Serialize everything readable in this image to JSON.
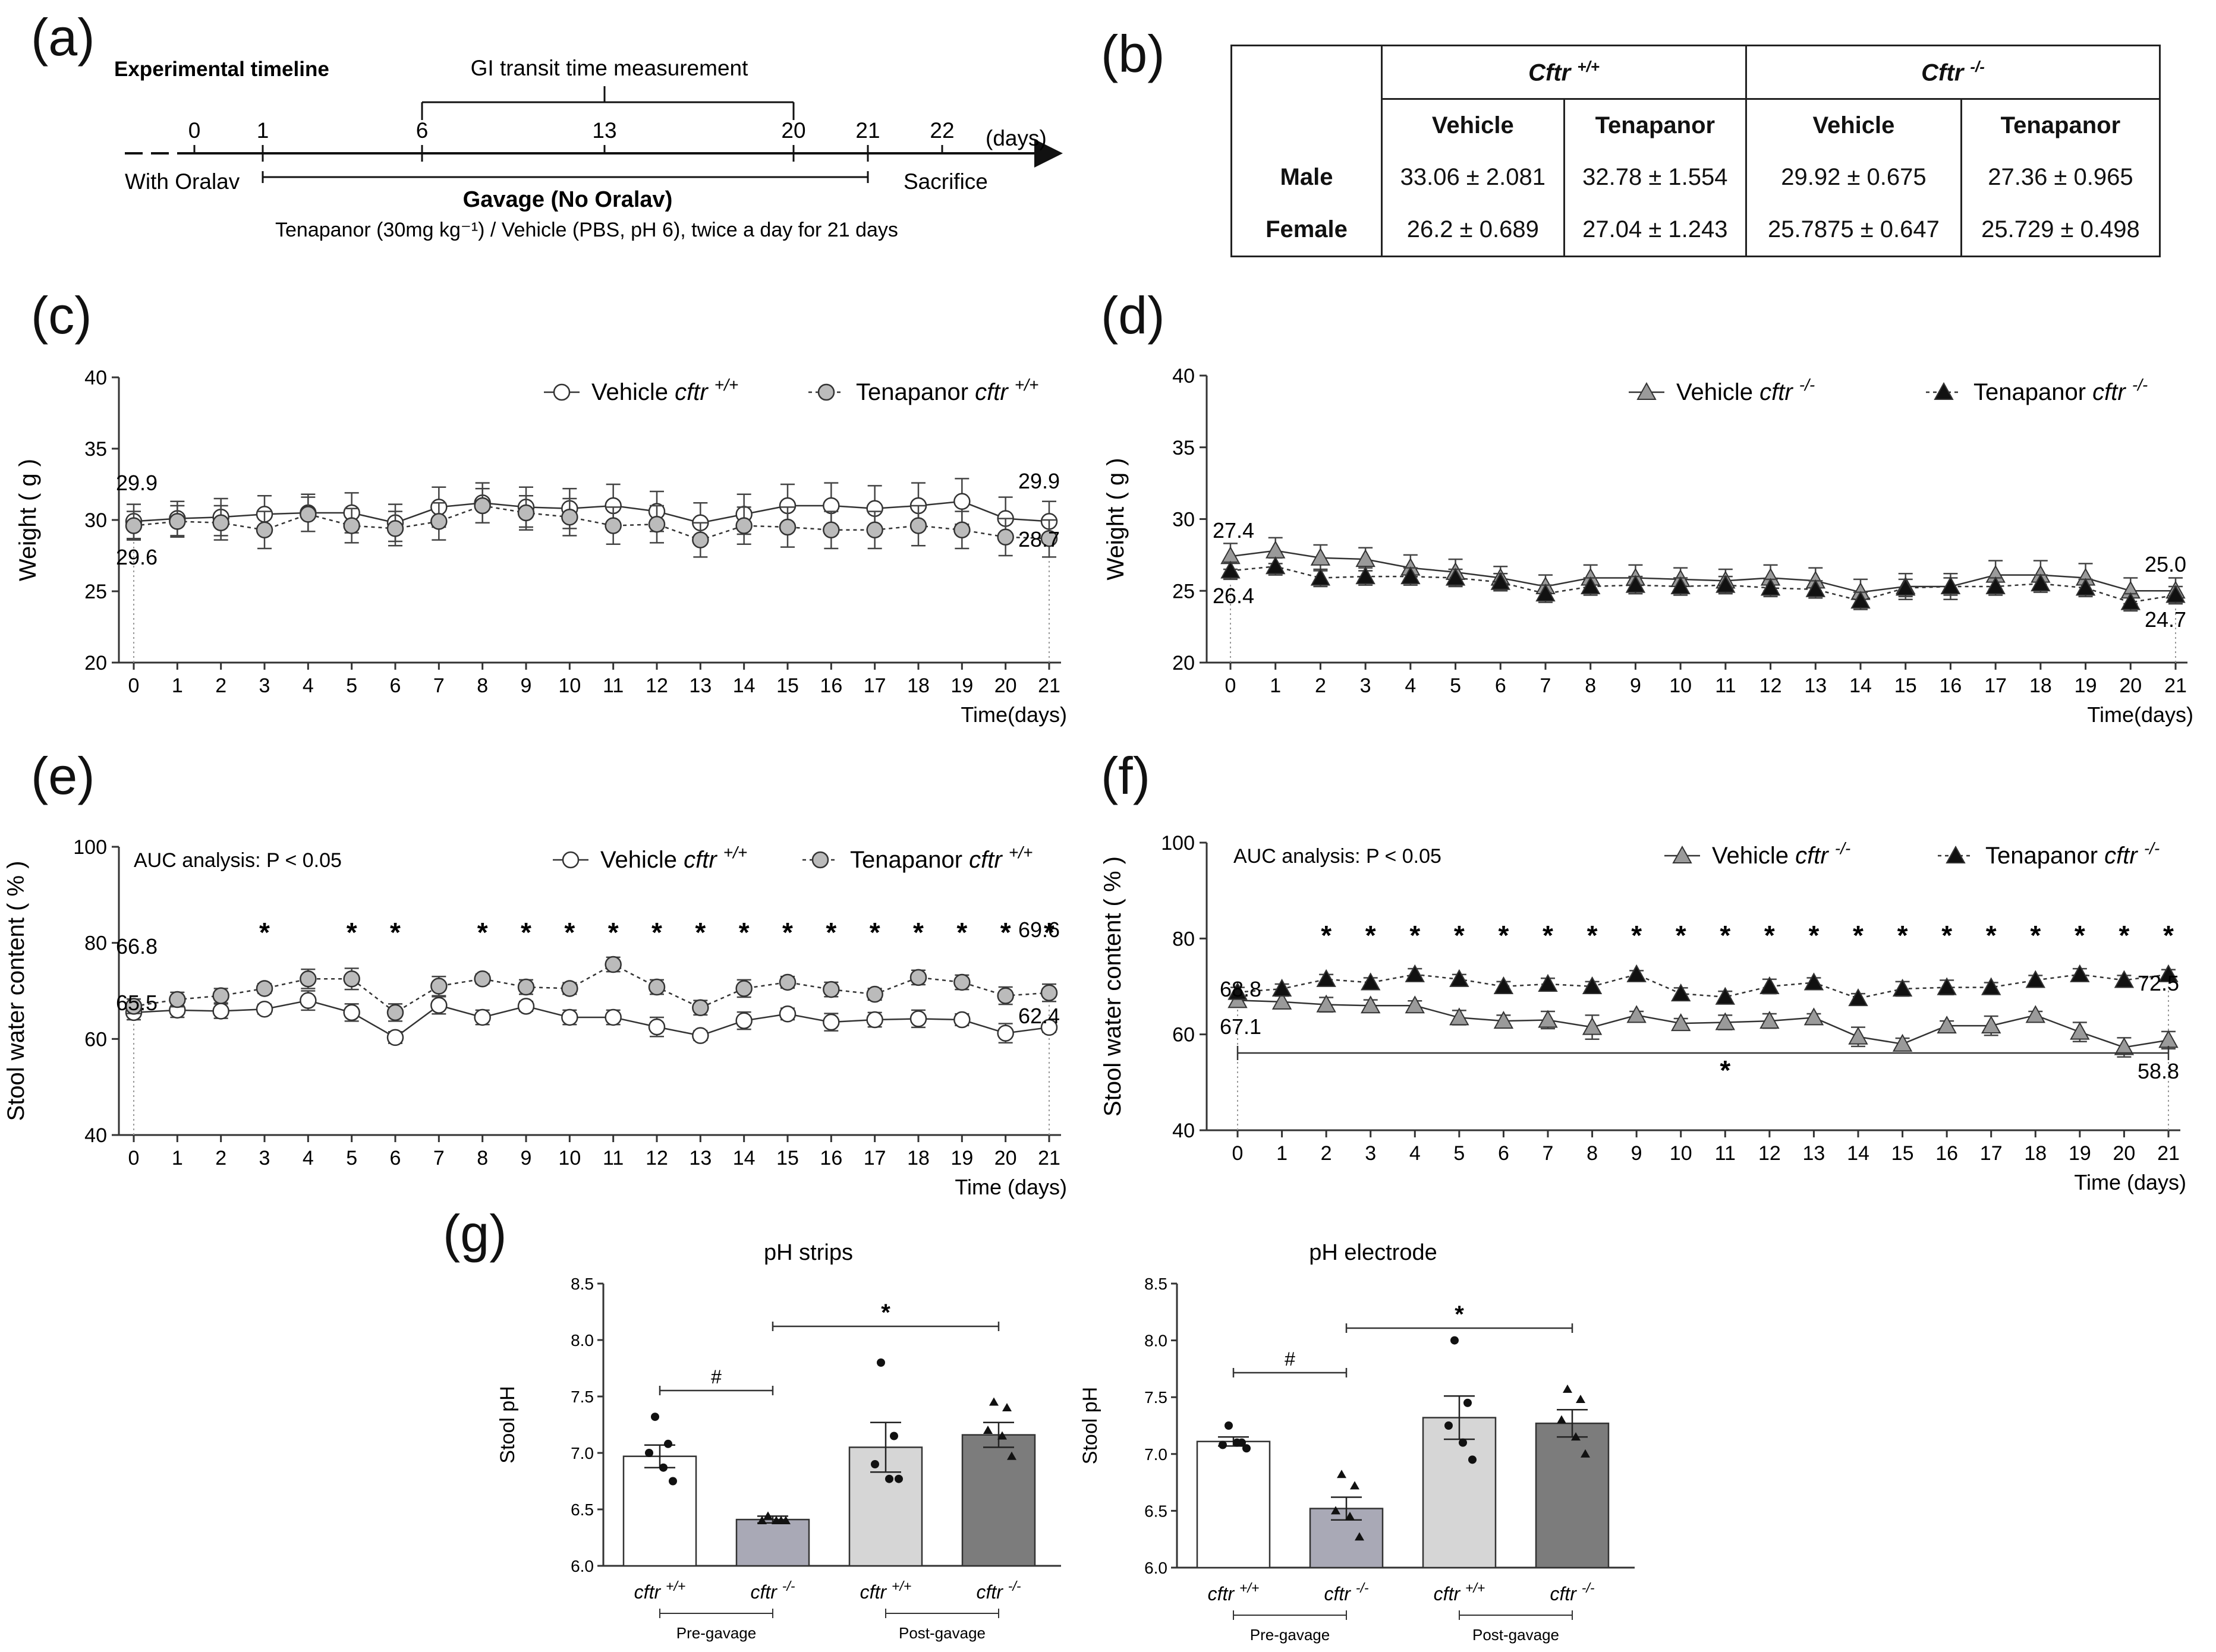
{
  "labels": {
    "a": "(a)",
    "b": "(b)",
    "c": "(c)",
    "d": "(d)",
    "e": "(e)",
    "f": "(f)",
    "g": "(g)"
  },
  "timeline": {
    "title": "Experimental timeline",
    "gi_label": "GI transit time measurement",
    "ticks": [
      "0",
      "1",
      "6",
      "13",
      "20",
      "21",
      "22"
    ],
    "unit": "(days)",
    "with_oralav": "With Oralav",
    "gavage": "Gavage  (No Oralav)",
    "sacrifice": "Sacrifice",
    "dosing": "Tenapanor (30mg kg⁻¹) / Vehicle (PBS, pH 6), twice a day for 21 days"
  },
  "table": {
    "genotype_wt": "Cftr",
    "genotype_wt_sup": "+/+",
    "genotype_ko": "Cftr",
    "genotype_ko_sup": "-/-",
    "treatments": [
      "Vehicle",
      "Tenapanor",
      "Vehicle",
      "Tenapanor"
    ],
    "rows": [
      {
        "sex": "Male",
        "values": [
          "33.06 ± 2.081",
          "32.78 ± 1.554",
          "29.92 ± 0.675",
          "27.36 ± 0.965"
        ]
      },
      {
        "sex": "Female",
        "values": [
          "26.2 ± 0.689",
          "27.04 ± 1.243",
          "25.7875 ± 0.647",
          "25.729 ± 0.498"
        ]
      }
    ]
  },
  "chart_data": [
    {
      "id": "c",
      "type": "line",
      "ylabel": "Weight ( g )",
      "xlabel": "Time(days)",
      "ylim": [
        20,
        40
      ],
      "yticks": [
        20,
        25,
        30,
        35,
        40
      ],
      "x": [
        0,
        1,
        2,
        3,
        4,
        5,
        6,
        7,
        8,
        9,
        10,
        11,
        12,
        13,
        14,
        15,
        16,
        17,
        18,
        19,
        20,
        21
      ],
      "series": [
        {
          "name": "Vehicle",
          "genotype": "cftr",
          "sup": "+/+",
          "style": "solid",
          "marker": "circle-open",
          "values": [
            29.9,
            30.1,
            30.2,
            30.4,
            30.5,
            30.5,
            29.8,
            30.9,
            31.2,
            30.9,
            30.8,
            31.0,
            30.6,
            29.8,
            30.4,
            31.0,
            31.0,
            30.8,
            31.0,
            31.3,
            30.1,
            29.9
          ],
          "err": [
            1.2,
            1.2,
            1.3,
            1.3,
            1.3,
            1.4,
            1.3,
            1.4,
            1.4,
            1.4,
            1.4,
            1.5,
            1.4,
            1.4,
            1.4,
            1.5,
            1.6,
            1.6,
            1.6,
            1.6,
            1.5,
            1.4
          ]
        },
        {
          "name": "Tenapanor",
          "genotype": "cftr",
          "sup": "+/+",
          "style": "dashed",
          "marker": "circle-gray",
          "values": [
            29.6,
            29.9,
            29.8,
            29.3,
            30.4,
            29.6,
            29.4,
            29.9,
            31.0,
            30.5,
            30.2,
            29.6,
            29.7,
            28.6,
            29.6,
            29.5,
            29.3,
            29.3,
            29.6,
            29.3,
            28.8,
            28.7
          ],
          "err": [
            1.0,
            1.1,
            1.2,
            1.3,
            1.2,
            1.2,
            1.2,
            1.3,
            1.2,
            1.2,
            1.3,
            1.3,
            1.3,
            1.2,
            1.3,
            1.4,
            1.3,
            1.3,
            1.4,
            1.3,
            1.3,
            1.3
          ]
        }
      ],
      "annotations": [
        "29.9",
        "29.6",
        "29.9",
        "28.7"
      ]
    },
    {
      "id": "d",
      "type": "line",
      "ylabel": "Weight ( g )",
      "xlabel": "Time(days)",
      "ylim": [
        20,
        40
      ],
      "yticks": [
        20,
        25,
        30,
        35,
        40
      ],
      "x": [
        0,
        1,
        2,
        3,
        4,
        5,
        6,
        7,
        8,
        9,
        10,
        11,
        12,
        13,
        14,
        15,
        16,
        17,
        18,
        19,
        20,
        21
      ],
      "series": [
        {
          "name": "Vehicle",
          "genotype": "cftr",
          "sup": "-/-",
          "style": "solid",
          "marker": "triangle-gray",
          "values": [
            27.4,
            27.8,
            27.3,
            27.2,
            26.6,
            26.3,
            25.9,
            25.3,
            25.9,
            25.9,
            25.8,
            25.7,
            25.9,
            25.7,
            24.9,
            25.3,
            25.3,
            26.1,
            26.1,
            25.9,
            25.0,
            25.0
          ],
          "err": [
            0.9,
            0.9,
            0.9,
            0.8,
            0.9,
            0.9,
            0.8,
            0.8,
            0.9,
            0.9,
            0.8,
            0.8,
            0.9,
            0.9,
            0.9,
            0.9,
            0.9,
            1.0,
            1.0,
            1.0,
            0.9,
            0.9
          ]
        },
        {
          "name": "Tenapanor",
          "genotype": "cftr",
          "sup": "-/-",
          "style": "dashed",
          "marker": "triangle-black",
          "values": [
            26.4,
            26.7,
            25.9,
            26.0,
            26.0,
            25.9,
            25.6,
            24.8,
            25.3,
            25.4,
            25.3,
            25.4,
            25.2,
            25.1,
            24.3,
            25.2,
            25.3,
            25.3,
            25.5,
            25.2,
            24.2,
            24.7
          ],
          "err": [
            0.6,
            0.6,
            0.6,
            0.6,
            0.6,
            0.6,
            0.6,
            0.6,
            0.6,
            0.6,
            0.6,
            0.6,
            0.6,
            0.6,
            0.6,
            0.6,
            0.6,
            0.6,
            0.6,
            0.6,
            0.6,
            0.6
          ]
        }
      ],
      "annotations": [
        "27.4",
        "26.4",
        "25.0",
        "24.7"
      ]
    },
    {
      "id": "e",
      "type": "line",
      "ylabel": "Stool water content ( % )",
      "xlabel": "Time (days)",
      "ylim": [
        40,
        100
      ],
      "yticks": [
        40,
        60,
        80,
        100
      ],
      "note": "AUC analysis: P < 0.05",
      "x": [
        0,
        1,
        2,
        3,
        4,
        5,
        6,
        7,
        8,
        9,
        10,
        11,
        12,
        13,
        14,
        15,
        16,
        17,
        18,
        19,
        20,
        21
      ],
      "series": [
        {
          "name": "Vehicle",
          "genotype": "cftr",
          "sup": "+/+",
          "style": "solid",
          "marker": "circle-open",
          "values": [
            65.5,
            66.0,
            65.8,
            66.2,
            68.0,
            65.5,
            60.3,
            67.0,
            64.5,
            66.8,
            64.5,
            64.5,
            62.5,
            60.7,
            63.8,
            65.2,
            63.5,
            64.0,
            64.2,
            64.0,
            61.2,
            62.4
          ],
          "err": [
            1.5,
            1.5,
            1.5,
            1.0,
            2.0,
            1.8,
            1.2,
            1.8,
            1.5,
            1.0,
            1.5,
            1.5,
            2.0,
            1.0,
            1.8,
            1.2,
            1.8,
            1.5,
            1.8,
            1.2,
            2.0,
            1.0
          ]
        },
        {
          "name": "Tenapanor",
          "genotype": "cftr",
          "sup": "+/+",
          "style": "dashed",
          "marker": "circle-gray",
          "values": [
            66.8,
            68.2,
            69.0,
            70.5,
            72.5,
            72.5,
            65.5,
            71.0,
            72.5,
            70.8,
            70.5,
            75.5,
            70.8,
            66.5,
            70.5,
            71.8,
            70.3,
            69.3,
            72.8,
            71.8,
            69.0,
            69.6
          ],
          "err": [
            1.5,
            1.5,
            1.5,
            1.0,
            2.0,
            2.2,
            1.8,
            2.0,
            1.0,
            1.5,
            1.2,
            1.5,
            1.5,
            1.5,
            1.8,
            1.2,
            1.5,
            1.2,
            1.5,
            1.5,
            1.8,
            1.8
          ]
        }
      ],
      "stars": [
        3,
        5,
        6,
        8,
        9,
        10,
        11,
        12,
        13,
        14,
        15,
        16,
        17,
        18,
        19,
        20,
        21
      ],
      "annotations": [
        "66.8",
        "65.5",
        "69.6",
        "62.4"
      ]
    },
    {
      "id": "f",
      "type": "line",
      "ylabel": "Stool water content ( % )",
      "xlabel": "Time (days)",
      "ylim": [
        40,
        100
      ],
      "yticks": [
        40,
        60,
        80,
        100
      ],
      "note": "AUC analysis: P < 0.05",
      "x": [
        0,
        1,
        2,
        3,
        4,
        5,
        6,
        7,
        8,
        9,
        10,
        11,
        12,
        13,
        14,
        15,
        16,
        17,
        18,
        19,
        20,
        21
      ],
      "series": [
        {
          "name": "Vehicle",
          "genotype": "cftr",
          "sup": "-/-",
          "style": "solid",
          "marker": "triangle-gray",
          "values": [
            67.1,
            66.8,
            66.2,
            66.0,
            66.0,
            63.5,
            62.8,
            63.0,
            61.5,
            64.0,
            62.3,
            62.5,
            62.8,
            63.5,
            59.5,
            58.0,
            61.8,
            61.8,
            64.0,
            60.5,
            57.3,
            58.8
          ],
          "err": [
            1.0,
            1.2,
            1.5,
            1.2,
            1.0,
            1.5,
            1.2,
            1.8,
            2.5,
            0.8,
            1.0,
            1.5,
            1.5,
            0.8,
            2.0,
            1.2,
            1.0,
            2.0,
            0.8,
            2.0,
            2.0,
            1.8
          ]
        },
        {
          "name": "Tenapanor",
          "genotype": "cftr",
          "sup": "-/-",
          "style": "dashed",
          "marker": "triangle-black",
          "values": [
            68.8,
            69.5,
            71.5,
            70.8,
            72.5,
            71.5,
            70.0,
            70.5,
            70.0,
            72.5,
            68.5,
            67.8,
            70.0,
            70.8,
            67.5,
            69.5,
            69.8,
            69.8,
            71.3,
            72.5,
            71.3,
            72.5
          ],
          "err": [
            1.0,
            1.0,
            1.0,
            1.0,
            1.2,
            1.0,
            1.0,
            1.2,
            1.0,
            0.8,
            1.2,
            1.2,
            1.5,
            1.0,
            1.0,
            1.5,
            1.5,
            1.0,
            1.0,
            1.2,
            1.0,
            1.0
          ]
        }
      ],
      "stars": [
        2,
        3,
        4,
        5,
        6,
        7,
        8,
        9,
        10,
        11,
        12,
        13,
        14,
        15,
        16,
        17,
        18,
        19,
        20,
        21
      ],
      "bracket_star": "*",
      "annotations": [
        "68.8",
        "67.1",
        "72.5",
        "58.8"
      ]
    },
    {
      "id": "g1",
      "type": "bar",
      "title": "pH strips",
      "ylabel": "Stool pH",
      "ylim": [
        6.0,
        8.5
      ],
      "yticks": [
        "6.0",
        "6.5",
        "7.0",
        "7.5",
        "8.0",
        "8.5"
      ],
      "categories": [
        {
          "g": "cftr",
          "s": "+/+"
        },
        {
          "g": "cftr",
          "s": "-/-"
        },
        {
          "g": "cftr",
          "s": "+/+"
        },
        {
          "g": "cftr",
          "s": "-/-"
        }
      ],
      "values": [
        6.97,
        6.41,
        7.05,
        7.16
      ],
      "err": [
        0.1,
        0.03,
        0.22,
        0.11
      ],
      "points": [
        [
          7.32,
          7.08,
          7.0,
          6.87,
          6.75
        ],
        [
          6.44,
          6.4,
          6.4,
          6.4,
          6.4
        ],
        [
          7.8,
          7.15,
          6.9,
          6.77,
          6.77
        ],
        [
          7.45,
          7.4,
          7.2,
          7.15,
          6.97
        ]
      ],
      "fills": [
        "#ffffff",
        "#a9a9b6",
        "#d6d6d6",
        "#7c7c7c"
      ],
      "groups": [
        "Pre-gavage",
        "Post-gavage"
      ],
      "sig": [
        "#",
        "*"
      ]
    },
    {
      "id": "g2",
      "type": "bar",
      "title": "pH electrode",
      "ylabel": "Stool pH",
      "ylim": [
        6.0,
        8.5
      ],
      "yticks": [
        "6.0",
        "6.5",
        "7.0",
        "7.5",
        "8.0",
        "8.5"
      ],
      "categories": [
        {
          "g": "cftr",
          "s": "+/+"
        },
        {
          "g": "cftr",
          "s": "-/-"
        },
        {
          "g": "cftr",
          "s": "+/+"
        },
        {
          "g": "cftr",
          "s": "-/-"
        }
      ],
      "values": [
        7.11,
        6.52,
        7.32,
        7.27
      ],
      "err": [
        0.04,
        0.1,
        0.19,
        0.12
      ],
      "points": [
        [
          7.25,
          7.1,
          7.08,
          7.1,
          7.05
        ],
        [
          6.82,
          6.72,
          6.5,
          6.45,
          6.27
        ],
        [
          8.0,
          7.45,
          7.25,
          7.1,
          6.95
        ],
        [
          7.57,
          7.48,
          7.3,
          7.15,
          7.0
        ]
      ],
      "fills": [
        "#ffffff",
        "#a9a9b6",
        "#d6d6d6",
        "#7c7c7c"
      ],
      "groups": [
        "Pre-gavage",
        "Post-gavage"
      ],
      "sig": [
        "#",
        "*"
      ]
    }
  ]
}
